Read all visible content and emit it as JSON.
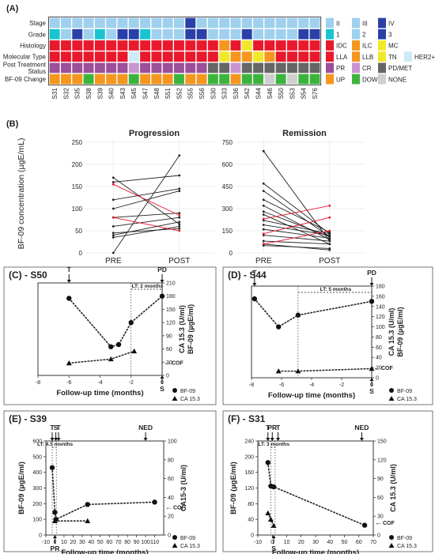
{
  "colors": {
    "teal": "#19c4cf",
    "light_blue": "#9fd0ee",
    "navy": "#2a40a8",
    "red": "#e8192c",
    "yellow": "#f2e82a",
    "orange": "#f5961e",
    "purple": "#9c4f9a",
    "lilac": "#c895d0",
    "dark_gray": "#666666",
    "green": "#3cb43c",
    "light_gray": "#cfcfcf",
    "pale_blue": "#cdebf7",
    "line_black": "#222222",
    "line_red": "#e8192c"
  },
  "panel_labels": {
    "A": "(A)",
    "B": "(B)",
    "C": "(C) - S50",
    "D": "(D) - S44",
    "E": "(E) - S39",
    "F": "(F) - S31"
  },
  "chart_data": [
    {
      "type": "heatmap",
      "panel": "(A)",
      "rows": [
        "Stage",
        "Grade",
        "Histology",
        "Molecular Type",
        "Post Treatment Status",
        "BF-09 Change"
      ],
      "row_labels": [
        "Stage",
        "Grade",
        "Histology",
        "Molecular Type",
        "Post Treatment\nStatus",
        "BF-09 Change"
      ],
      "columns": [
        "S31",
        "S32",
        "S35",
        "S38",
        "S39",
        "S40",
        "S43",
        "S45",
        "S47",
        "S48",
        "S51",
        "S52",
        "S55",
        "S56",
        "S30",
        "S33",
        "S36",
        "S42",
        "S44",
        "S46",
        "S50",
        "S53",
        "S54",
        "S76"
      ],
      "cells": [
        [
          "II",
          "II",
          "II",
          "III",
          "III",
          "III",
          "III",
          "III",
          "III",
          "II",
          "II",
          "III",
          "IV",
          "III",
          "II",
          "III",
          "III",
          "III",
          "II",
          "III",
          "III",
          "III",
          "III",
          "III"
        ],
        [
          "1",
          "2",
          "3",
          "2",
          "1",
          "2",
          "3",
          "3",
          "1",
          "2",
          "2",
          "2",
          "3",
          "3",
          "2",
          "2",
          "2",
          "3",
          "2",
          "2",
          "2",
          "2",
          "3",
          "3"
        ],
        [
          "IDC",
          "IDC",
          "IDC",
          "IDC",
          "IDC",
          "IDC",
          "IDC",
          "IDC",
          "IDC",
          "IDC",
          "IDC",
          "IDC",
          "IDC",
          "IDC",
          "IDC",
          "ILC",
          "IDC",
          "MC",
          "IDC",
          "IDC",
          "IDC",
          "IDC",
          "IDC",
          "IDC"
        ],
        [
          "LLA",
          "LLA",
          "LLA",
          "LLA",
          "LLA",
          "LLA",
          "LLA",
          "HER2+",
          "LLA",
          "LLA",
          "LLA",
          "LLA",
          "LLA",
          "LLA",
          "LLA",
          "TN",
          "LLB",
          "LLB",
          "TN",
          "LLB",
          "LLA",
          "LLA",
          "LLA",
          "LLA"
        ],
        [
          "PR",
          "PR",
          "PR",
          "PR",
          "PR",
          "PR",
          "PR",
          "CR",
          "PR",
          "PR",
          "PR",
          "PR",
          "PR",
          "PR",
          "PD/MET",
          "PD/MET",
          "CR",
          "PD/MET",
          "PD/MET",
          "PD/MET",
          "PD/MET",
          "PD/MET",
          "PD/MET",
          "PD/MET"
        ],
        [
          "UP",
          "UP",
          "UP",
          "DOWN",
          "UP",
          "UP",
          "UP",
          "DOWN",
          "UP",
          "UP",
          "UP",
          "DOWN",
          "UP",
          "UP",
          "DOWN",
          "DOWN",
          "UP",
          "DOWN",
          "DOWN",
          "NONE",
          "DOWN",
          "NONE",
          "DOWN",
          "DOWN"
        ]
      ],
      "legend": [
        [
          {
            "label": "II",
            "color": "light_blue"
          },
          {
            "label": "III",
            "color": "light_blue"
          },
          {
            "label": "IV",
            "color": "navy"
          }
        ],
        [
          {
            "label": "1",
            "color": "teal"
          },
          {
            "label": "2",
            "color": "light_blue"
          },
          {
            "label": "3",
            "color": "navy"
          }
        ],
        [
          {
            "label": "IDC",
            "color": "red"
          },
          {
            "label": "ILC",
            "color": "orange"
          },
          {
            "label": "MC",
            "color": "yellow"
          }
        ],
        [
          {
            "label": "LLA",
            "color": "red"
          },
          {
            "label": "LLB",
            "color": "orange"
          },
          {
            "label": "TN",
            "color": "yellow"
          },
          {
            "label": "HER2+",
            "color": "pale_blue"
          }
        ],
        [
          {
            "label": "PR",
            "color": "purple"
          },
          {
            "label": "CR",
            "color": "lilac"
          },
          {
            "label": "PD/MET",
            "color": "dark_gray"
          }
        ],
        [
          {
            "label": "UP",
            "color": "orange"
          },
          {
            "label": "DOWN",
            "color": "green"
          },
          {
            "label": "NONE",
            "color": "light_gray"
          }
        ]
      ],
      "cell_colors": {
        "II": "light_blue",
        "III": "light_blue",
        "IV": "navy",
        "1": "teal",
        "2": "light_blue",
        "3": "navy",
        "IDC": "red",
        "ILC": "orange",
        "MC": "yellow",
        "LLA": "red",
        "LLB": "orange",
        "TN": "yellow",
        "HER2+": "pale_blue",
        "PR": "purple",
        "CR": "lilac",
        "PD/MET": "dark_gray",
        "UP": "orange",
        "DOWN": "green",
        "NONE": "light_gray"
      }
    },
    {
      "type": "line",
      "panel": "(B)",
      "ylabel": "BF-09 concentration (µgE/mL)",
      "subplots": [
        {
          "title": "Progression",
          "categories": [
            "PRE",
            "POST"
          ],
          "ylim": [
            0,
            250
          ],
          "yticks": [
            0,
            50,
            100,
            150,
            200,
            250
          ],
          "pairs": [
            [
              170,
              65
            ],
            [
              160,
              175
            ],
            [
              120,
              145
            ],
            [
              100,
              140
            ],
            [
              80,
              90
            ],
            [
              60,
              80
            ],
            [
              45,
              55
            ],
            [
              35,
              60
            ],
            [
              0,
              220
            ],
            [
              155,
              85
            ],
            [
              80,
              50
            ],
            [
              40,
              70
            ]
          ],
          "red_pairs": [
            9,
            10
          ]
        },
        {
          "title": "Remission",
          "categories": [
            "PRE",
            "POST"
          ],
          "ylim": [
            0,
            750
          ],
          "yticks": [
            0,
            150,
            300,
            450,
            600,
            750
          ],
          "pairs": [
            [
              690,
              80
            ],
            [
              470,
              130
            ],
            [
              420,
              110
            ],
            [
              360,
              140
            ],
            [
              320,
              90
            ],
            [
              280,
              110
            ],
            [
              260,
              60
            ],
            [
              220,
              130
            ],
            [
              190,
              120
            ],
            [
              160,
              100
            ],
            [
              120,
              80
            ],
            [
              80,
              60
            ],
            [
              60,
              20
            ],
            [
              50,
              30
            ],
            [
              230,
              320
            ],
            [
              130,
              240
            ],
            [
              60,
              150
            ]
          ],
          "red_pairs": [
            14,
            15,
            16
          ]
        }
      ]
    },
    {
      "type": "line",
      "panel": "(C) - S50",
      "xlabel": "Follow-up time (months)",
      "ylabel_right": "CA 15.3 (U/ml)\nBF-09 (µgE/ml)",
      "xlim": [
        -8,
        0
      ],
      "xticks": [
        -8,
        -6,
        -4,
        -2,
        0
      ],
      "ylim": [
        0,
        210
      ],
      "yticks": [
        0,
        30,
        60,
        90,
        120,
        150,
        180,
        210
      ],
      "series": [
        {
          "name": "BF-09",
          "marker": "circle",
          "x": [
            -6,
            -3.3,
            -2.8,
            -2,
            0
          ],
          "y": [
            175,
            65,
            70,
            120,
            180
          ]
        },
        {
          "name": "CA 15.3",
          "marker": "triangle",
          "x": [
            -6,
            -3.3,
            -1.8
          ],
          "y": [
            28,
            37,
            55
          ]
        }
      ],
      "annotations": [
        {
          "label": "T",
          "x": -6,
          "kind": "arrow-top"
        },
        {
          "label": "PD",
          "x": 0,
          "kind": "arrow-top"
        },
        {
          "label": "S",
          "x": 0,
          "kind": "arrow-bottom"
        },
        {
          "label": "LT: 2 months",
          "kind": "span",
          "x1": -2,
          "x2": 0
        },
        {
          "label": "COF",
          "y": 30,
          "kind": "cof"
        }
      ]
    },
    {
      "type": "line",
      "panel": "(D) - S44",
      "xlabel": "Follow-up time (months)",
      "ylabel_right": "CA 15.3 (U/ml)\nBF-09 (µgE/ml)",
      "xlim": [
        -8,
        0
      ],
      "xticks": [
        -8,
        -6,
        -4,
        -2,
        0
      ],
      "ylim": [
        0,
        180
      ],
      "yticks": [
        0,
        20,
        40,
        60,
        80,
        100,
        120,
        140,
        160,
        180
      ],
      "series": [
        {
          "name": "BF-09",
          "marker": "circle",
          "x": [
            -7.8,
            -6.2,
            -4.9,
            0
          ],
          "y": [
            155,
            100,
            123,
            150
          ]
        },
        {
          "name": "CA 15.3",
          "marker": "triangle",
          "x": [
            -6.2,
            -4.9,
            0
          ],
          "y": [
            13,
            13,
            18
          ]
        }
      ],
      "annotations": [
        {
          "label": "T",
          "x": -7.8,
          "kind": "arrow-top"
        },
        {
          "label": "PD",
          "x": 0,
          "kind": "arrow-top"
        },
        {
          "label": "S",
          "x": 0,
          "kind": "arrow-bottom"
        },
        {
          "label": "LT: 5 months",
          "kind": "span",
          "x1": -4.9,
          "x2": 0
        },
        {
          "label": "COF",
          "y": 20,
          "kind": "cof"
        }
      ]
    },
    {
      "type": "line",
      "panel": "(E) - S39",
      "xlabel": "Follow-up time (months)",
      "ylabel": "BF-09 (µgE/ml)",
      "ylabel_right": "CA15-3 (U/ml)",
      "xlim": [
        -10,
        120
      ],
      "xticks": [
        -10,
        0,
        10,
        20,
        30,
        40,
        50,
        60,
        70,
        80,
        90,
        100,
        110
      ],
      "ylim": [
        0,
        600
      ],
      "yticks": [
        0,
        100,
        200,
        300,
        400,
        500,
        600
      ],
      "ylim_right": [
        0,
        100
      ],
      "yticks_right": [
        0,
        20,
        40,
        60,
        80,
        100
      ],
      "series": [
        {
          "name": "BF-09",
          "marker": "circle",
          "x": [
            -3,
            0,
            1,
            36,
            110
          ],
          "y": [
            430,
            145,
            100,
            195,
            210
          ]
        },
        {
          "name": "CA 15.3",
          "marker": "triangle",
          "x": [
            0,
            36
          ],
          "y": [
            15,
            15
          ]
        }
      ],
      "annotations": [
        {
          "label": "T",
          "x": -3,
          "kind": "arrow-top"
        },
        {
          "label": "S",
          "x": 1,
          "kind": "arrow-top"
        },
        {
          "label": "T",
          "x": 4,
          "kind": "arrow-top"
        },
        {
          "label": "NED",
          "x": 100,
          "kind": "arrow-top"
        },
        {
          "label": "PR",
          "x": 0,
          "kind": "arrow-bottom"
        },
        {
          "label": "LT: 4.5 months",
          "kind": "span",
          "x1": -3,
          "x2": 1.5
        },
        {
          "label": "COF",
          "y": 30,
          "kind": "cof"
        }
      ]
    },
    {
      "type": "line",
      "panel": "(F) - S31",
      "xlabel": "Follow-up time (months)",
      "ylabel": "BF-09 (µgE/ml)",
      "ylabel_right": "CA 15.3 (U/ml)",
      "xlim": [
        -10,
        70
      ],
      "xticks": [
        -10,
        0,
        10,
        20,
        30,
        40,
        50,
        60,
        70
      ],
      "ylim": [
        0,
        240
      ],
      "yticks": [
        0,
        40,
        80,
        120,
        160,
        200,
        240
      ],
      "ylim_right": [
        0,
        150
      ],
      "yticks_right": [
        0,
        30,
        60,
        90,
        120,
        150
      ],
      "series": [
        {
          "name": "BF-09",
          "marker": "circle",
          "x": [
            -3,
            -1,
            1,
            64
          ],
          "y": [
            185,
            125,
            123,
            25
          ]
        },
        {
          "name": "CA 15.3",
          "marker": "triangle",
          "x": [
            -3,
            -1,
            1
          ],
          "y": [
            35,
            25,
            15
          ]
        }
      ],
      "annotations": [
        {
          "label": "T",
          "x": -3,
          "kind": "arrow-top"
        },
        {
          "label": "PR",
          "x": 0,
          "kind": "arrow-top"
        },
        {
          "label": "T",
          "x": 4,
          "kind": "arrow-top"
        },
        {
          "label": "NED",
          "x": 62,
          "kind": "arrow-top"
        },
        {
          "label": "S",
          "x": 1,
          "kind": "arrow-bottom"
        },
        {
          "label": "LT: 3 months",
          "kind": "span",
          "x1": -1,
          "x2": 2
        },
        {
          "label": "COF",
          "y": 20,
          "kind": "cof"
        }
      ]
    }
  ]
}
